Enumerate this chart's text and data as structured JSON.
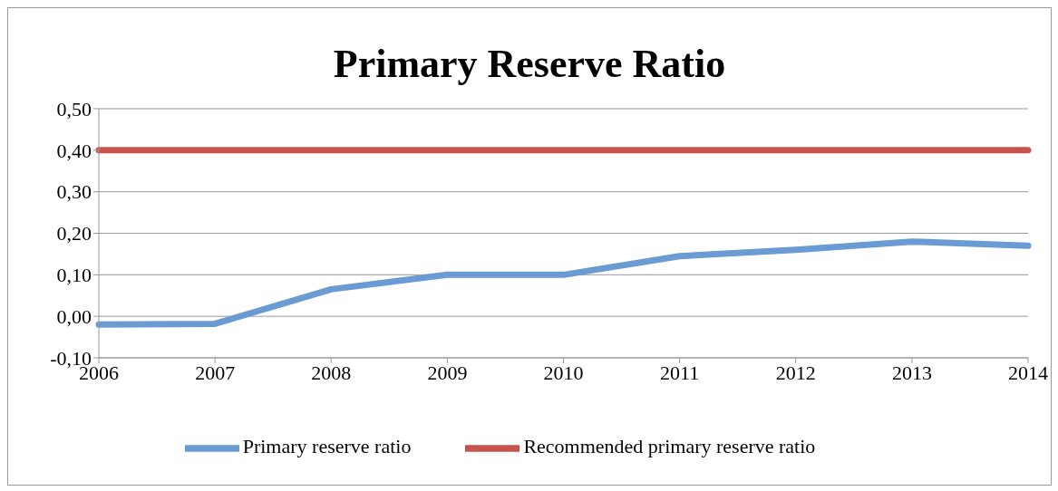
{
  "chart_data": {
    "type": "line",
    "title": "Primary Reserve Ratio",
    "categories": [
      "2006",
      "2007",
      "2008",
      "2009",
      "2010",
      "2011",
      "2012",
      "2013",
      "2014"
    ],
    "series": [
      {
        "name": "Primary reserve ratio",
        "color": "#6a9bd3",
        "values": [
          -0.02,
          -0.018,
          0.065,
          0.1,
          0.1,
          0.145,
          0.16,
          0.18,
          0.17
        ]
      },
      {
        "name": "Recommended primary reserve ratio",
        "color": "#c9524d",
        "values": [
          0.4,
          0.4,
          0.4,
          0.4,
          0.4,
          0.4,
          0.4,
          0.4,
          0.4
        ]
      }
    ],
    "ylim": [
      -0.1,
      0.5
    ],
    "yticks": [
      {
        "value": -0.1,
        "label": "-0,10"
      },
      {
        "value": 0,
        "label": "0,00"
      },
      {
        "value": 0.1,
        "label": "0,10"
      },
      {
        "value": 0.2,
        "label": "0,20"
      },
      {
        "value": 0.3,
        "label": "0,30"
      },
      {
        "value": 0.4,
        "label": "0,40"
      },
      {
        "value": 0.5,
        "label": "0,50"
      }
    ],
    "grid": "y",
    "legend": "bottom",
    "marker": "none",
    "line_style": "solid"
  }
}
